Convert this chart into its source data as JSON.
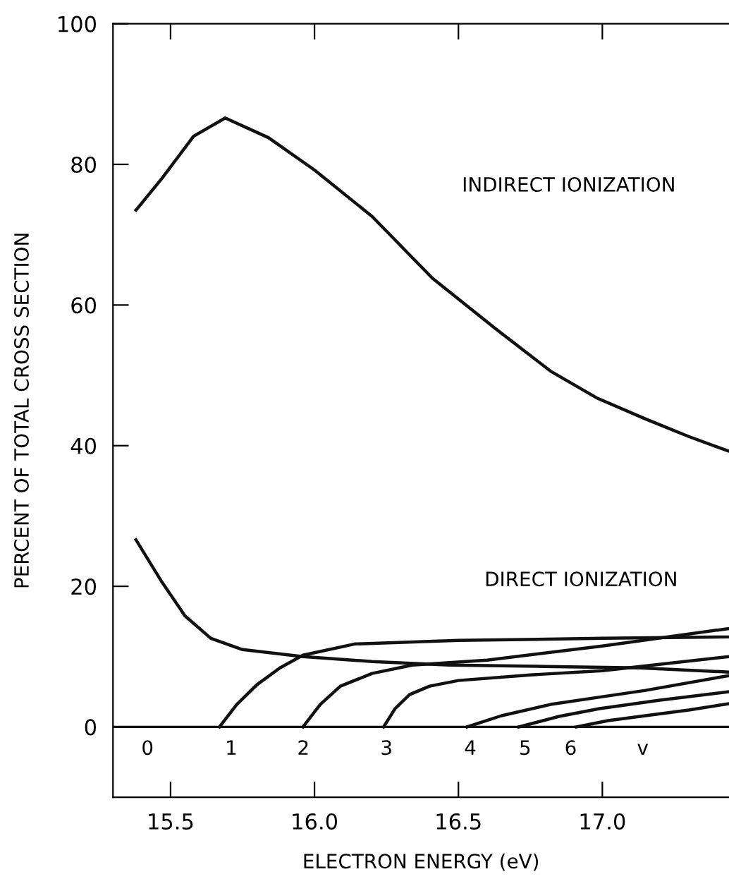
{
  "chart_data": {
    "type": "line",
    "xlabel": "ELECTRON ENERGY (eV)",
    "ylabel": "PERCENT OF TOTAL CROSS SECTION",
    "xlim": [
      15.3,
      17.44
    ],
    "ylim": [
      -10,
      100
    ],
    "xticks": [
      15.5,
      {
        "value": 16.0,
        "label": "16.0"
      },
      16.5,
      {
        "value": 17.0,
        "label": "17.0"
      }
    ],
    "yticks": [
      0,
      20,
      40,
      60,
      80,
      100
    ],
    "grid": false,
    "legend": false,
    "marker": "none",
    "line_style": "solid",
    "series": [
      {
        "color": "#111111",
        "x": [
          15.38,
          15.47,
          15.58,
          15.69,
          15.84,
          16.0,
          16.2,
          16.41,
          16.63,
          16.82,
          16.98,
          17.15,
          17.3,
          17.44
        ],
        "values": [
          73.5,
          78,
          84,
          86.6,
          83.8,
          79.2,
          72.6,
          63.8,
          56.6,
          50.6,
          46.8,
          43.8,
          41.3,
          39.2
        ]
      },
      {
        "color": "#111111",
        "x": [
          15.38,
          15.47,
          15.55,
          15.64,
          15.75,
          15.96,
          16.2,
          16.47,
          16.8,
          17.13,
          17.44
        ],
        "values": [
          26.6,
          20.6,
          15.8,
          12.6,
          11,
          10,
          9.3,
          8.8,
          8.6,
          8.4,
          7.8
        ]
      },
      {
        "color": "#111111",
        "x": [
          15.67,
          15.73,
          15.8,
          15.88,
          15.96,
          16.14,
          16.5,
          17.0,
          17.44
        ],
        "values": [
          0,
          3.2,
          6,
          8.4,
          10.2,
          11.8,
          12.3,
          12.6,
          12.8
        ]
      },
      {
        "color": "#111111",
        "x": [
          15.96,
          16.02,
          16.09,
          16.2,
          16.34,
          16.6,
          17.0,
          17.44
        ],
        "values": [
          0,
          3.2,
          5.8,
          7.6,
          8.8,
          9.5,
          11.5,
          14
        ]
      },
      {
        "color": "#111111",
        "x": [
          16.24,
          16.28,
          16.33,
          16.4,
          16.5,
          16.75,
          17.0,
          17.44
        ],
        "values": [
          0,
          2.6,
          4.6,
          5.8,
          6.6,
          7.4,
          8,
          10
        ]
      },
      {
        "color": "#111111",
        "x": [
          16.53,
          16.65,
          16.82,
          17.0,
          17.15,
          17.44
        ],
        "values": [
          0,
          1.6,
          3.2,
          4.3,
          5.2,
          7.3
        ]
      },
      {
        "color": "#111111",
        "x": [
          16.71,
          16.85,
          16.99,
          17.2,
          17.44
        ],
        "values": [
          0,
          1.5,
          2.6,
          3.8,
          5
        ]
      },
      {
        "color": "#111111",
        "x": [
          16.91,
          17.02,
          17.15,
          17.3,
          17.44
        ],
        "values": [
          0,
          0.9,
          1.6,
          2.4,
          3.3
        ]
      }
    ],
    "ref_lines": [
      {
        "axis": "y",
        "value": 0,
        "color": "#111111"
      }
    ],
    "annotations": [
      "INDIRECT IONIZATION",
      "DIRECT IONIZATION",
      "0",
      "1",
      "2",
      "3",
      "4",
      "5",
      "6",
      "v"
    ]
  }
}
